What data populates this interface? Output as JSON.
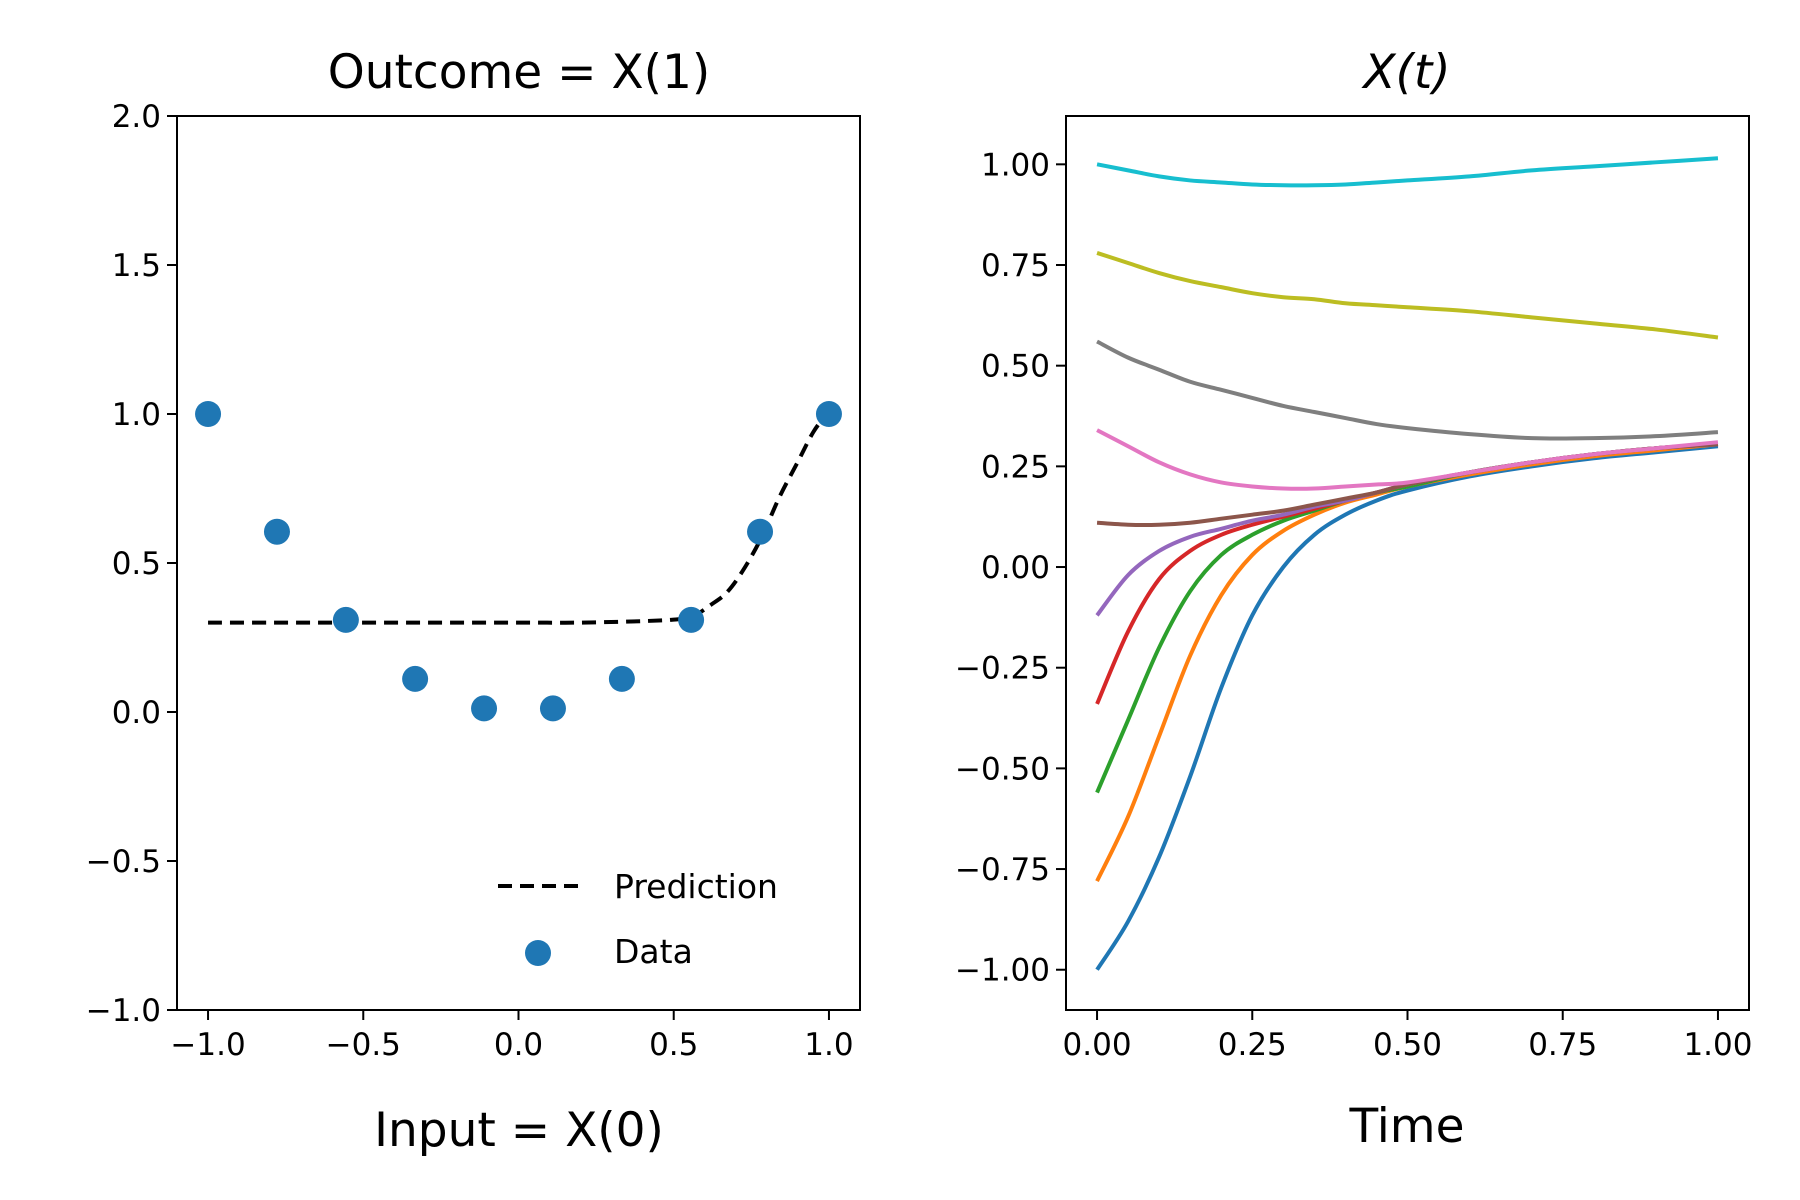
{
  "chart_data": [
    {
      "type": "scatter",
      "title": "Outcome = X(1)",
      "xlabel": "Input = X(0)",
      "ylabel": "",
      "xlim": [
        -1.1,
        1.1
      ],
      "ylim": [
        -1.0,
        2.0
      ],
      "xticks": [
        "−1.0",
        "−0.5",
        "0.0",
        "0.5",
        "1.0"
      ],
      "yticks": [
        "−1.0",
        "−0.5",
        "0.0",
        "0.5",
        "1.0",
        "1.5",
        "2.0"
      ],
      "grid": false,
      "legend_position": "bottom-right",
      "series": [
        {
          "name": "Prediction",
          "kind": "line",
          "style": "dashed",
          "color": "#000000",
          "x": [
            -1.0,
            -0.8,
            -0.6,
            -0.4,
            -0.2,
            0.0,
            0.2,
            0.4,
            0.5,
            0.56,
            0.62,
            0.67,
            0.72,
            0.78,
            0.84,
            0.9,
            0.95,
            1.0
          ],
          "y": [
            0.3,
            0.3,
            0.3,
            0.3,
            0.3,
            0.3,
            0.3,
            0.305,
            0.31,
            0.32,
            0.36,
            0.4,
            0.47,
            0.58,
            0.72,
            0.84,
            0.94,
            1.01
          ]
        },
        {
          "name": "Data",
          "kind": "scatter",
          "color": "#1f77b4",
          "x": [
            -1.0,
            -0.778,
            -0.556,
            -0.333,
            -0.111,
            0.111,
            0.333,
            0.556,
            0.778,
            1.0
          ],
          "y": [
            1.0,
            0.605,
            0.309,
            0.111,
            0.012,
            0.012,
            0.111,
            0.309,
            0.605,
            1.0
          ]
        }
      ]
    },
    {
      "type": "line",
      "title": "X(t)",
      "xlabel": "Time",
      "ylabel": "",
      "xlim": [
        -0.05,
        1.05
      ],
      "ylim": [
        -1.1,
        1.12
      ],
      "xticks": [
        "0.00",
        "0.25",
        "0.50",
        "0.75",
        "1.00"
      ],
      "yticks": [
        "−1.00",
        "−0.75",
        "−0.50",
        "−0.25",
        "0.00",
        "0.25",
        "0.50",
        "0.75",
        "1.00"
      ],
      "grid": false,
      "x": [
        0.0,
        0.05,
        0.1,
        0.15,
        0.2,
        0.25,
        0.3,
        0.35,
        0.4,
        0.45,
        0.5,
        0.6,
        0.7,
        0.8,
        0.9,
        1.0
      ],
      "series": [
        {
          "color": "#1f77b4",
          "values": [
            -1.0,
            -0.88,
            -0.72,
            -0.52,
            -0.3,
            -0.12,
            0.0,
            0.08,
            0.13,
            0.165,
            0.19,
            0.225,
            0.25,
            0.27,
            0.285,
            0.3
          ]
        },
        {
          "color": "#ff7f0e",
          "values": [
            -0.78,
            -0.62,
            -0.42,
            -0.22,
            -0.07,
            0.03,
            0.09,
            0.13,
            0.16,
            0.18,
            0.2,
            0.23,
            0.255,
            0.275,
            0.29,
            0.305
          ]
        },
        {
          "color": "#2ca02c",
          "values": [
            -0.56,
            -0.38,
            -0.2,
            -0.06,
            0.03,
            0.08,
            0.115,
            0.14,
            0.165,
            0.185,
            0.2,
            0.235,
            0.26,
            0.28,
            0.295,
            0.305
          ]
        },
        {
          "color": "#d62728",
          "values": [
            -0.34,
            -0.16,
            -0.03,
            0.04,
            0.08,
            0.105,
            0.125,
            0.145,
            0.165,
            0.185,
            0.205,
            0.235,
            0.26,
            0.28,
            0.295,
            0.305
          ]
        },
        {
          "color": "#9467bd",
          "values": [
            -0.12,
            -0.02,
            0.04,
            0.075,
            0.095,
            0.115,
            0.13,
            0.15,
            0.165,
            0.185,
            0.205,
            0.235,
            0.26,
            0.28,
            0.295,
            0.305
          ]
        },
        {
          "color": "#8c564b",
          "values": [
            0.11,
            0.105,
            0.105,
            0.11,
            0.12,
            0.13,
            0.14,
            0.155,
            0.17,
            0.185,
            0.205,
            0.235,
            0.26,
            0.28,
            0.295,
            0.305
          ]
        },
        {
          "color": "#e377c2",
          "values": [
            0.34,
            0.3,
            0.26,
            0.23,
            0.21,
            0.2,
            0.195,
            0.195,
            0.2,
            0.205,
            0.21,
            0.235,
            0.26,
            0.28,
            0.295,
            0.31
          ]
        },
        {
          "color": "#7f7f7f",
          "values": [
            0.56,
            0.52,
            0.49,
            0.46,
            0.44,
            0.42,
            0.4,
            0.385,
            0.37,
            0.355,
            0.345,
            0.33,
            0.32,
            0.32,
            0.325,
            0.335
          ]
        },
        {
          "color": "#bcbd22",
          "values": [
            0.78,
            0.755,
            0.73,
            0.71,
            0.695,
            0.68,
            0.67,
            0.665,
            0.655,
            0.65,
            0.645,
            0.635,
            0.62,
            0.605,
            0.59,
            0.57
          ]
        },
        {
          "color": "#17becf",
          "values": [
            1.0,
            0.985,
            0.97,
            0.96,
            0.955,
            0.95,
            0.948,
            0.948,
            0.95,
            0.955,
            0.96,
            0.97,
            0.985,
            0.995,
            1.005,
            1.015
          ]
        }
      ]
    }
  ]
}
